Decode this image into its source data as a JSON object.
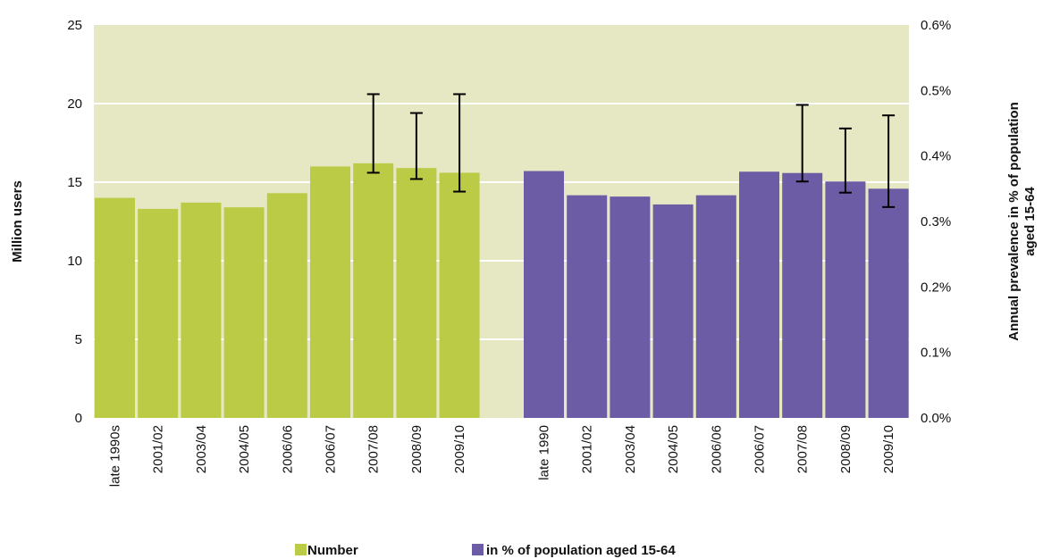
{
  "chart_data": {
    "type": "bar",
    "categories_number": [
      "late 1990s",
      "2001/02",
      "2003/04",
      "2004/05",
      "2006/06",
      "2006/07",
      "2007/08",
      "2008/09",
      "2009/10"
    ],
    "categories_percent": [
      "late 1990",
      "2001/02",
      "2003/04",
      "2004/05",
      "2006/06",
      "2006/07",
      "2007/08",
      "2008/09",
      "2009/10"
    ],
    "series": [
      {
        "name": "Number",
        "axis": "left",
        "color": "#bccb45",
        "values": [
          14.0,
          13.3,
          13.7,
          13.4,
          14.3,
          16.0,
          16.2,
          15.9,
          15.6
        ],
        "error_low": [
          null,
          null,
          null,
          null,
          null,
          null,
          15.6,
          15.2,
          14.4
        ],
        "error_high": [
          null,
          null,
          null,
          null,
          null,
          null,
          20.6,
          19.4,
          20.6
        ]
      },
      {
        "name": "in % of population aged 15-64",
        "axis": "right",
        "color": "#6c5ba5",
        "values": [
          0.377,
          0.34,
          0.338,
          0.326,
          0.34,
          0.376,
          0.374,
          0.361,
          0.35
        ],
        "error_low": [
          null,
          null,
          null,
          null,
          null,
          null,
          0.361,
          0.344,
          0.322
        ],
        "error_high": [
          null,
          null,
          null,
          null,
          null,
          null,
          0.478,
          0.442,
          0.462
        ]
      }
    ],
    "ylabel": "Million users",
    "ylim": [
      0,
      25
    ],
    "yticks": [
      "0",
      "5",
      "10",
      "15",
      "20",
      "25"
    ],
    "y2label": "Annual prevalence in % of population aged 15-64",
    "y2label_lines": [
      "Annual prevalence in % of population",
      "aged 15-64"
    ],
    "y2lim": [
      0,
      0.6
    ],
    "y2ticks": [
      "0.0%",
      "0.1%",
      "0.2%",
      "0.3%",
      "0.4%",
      "0.5%",
      "0.6%"
    ],
    "legend_position": "bottom",
    "grid": true,
    "plot_background": "#e6e7c3"
  }
}
